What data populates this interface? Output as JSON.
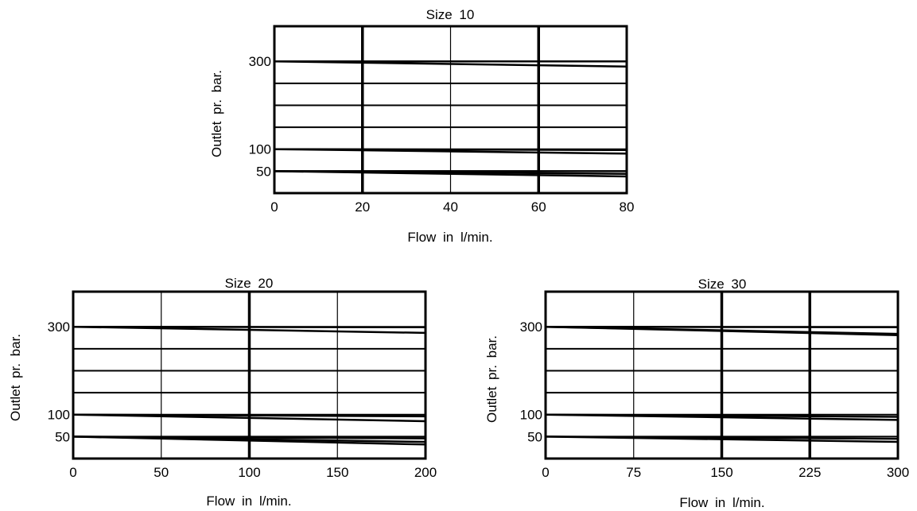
{
  "chart_data": [
    {
      "type": "line",
      "title": "Size 10",
      "xlabel": "Flow in l/min.",
      "ylabel": "Outlet pr. bar.",
      "xlim": [
        0,
        80
      ],
      "ylim": [
        0,
        380
      ],
      "x_ticks": [
        "0",
        "20",
        "40",
        "60",
        "80"
      ],
      "y_ticks": [
        "300",
        "100",
        "50"
      ],
      "y_tick_values": [
        300,
        100,
        50
      ],
      "grid": true,
      "thick_vertical_gridlines": [
        20,
        60
      ],
      "thin_vertical_gridlines": [
        40
      ],
      "horizontal_gridlines": [
        50,
        100,
        150,
        200,
        250,
        300
      ],
      "series": [
        {
          "x": [
            0,
            80
          ],
          "y": [
            300,
            300
          ]
        },
        {
          "x": [
            0,
            80
          ],
          "y": [
            300,
            288
          ]
        },
        {
          "x": [
            0,
            80
          ],
          "y": [
            100,
            98
          ]
        },
        {
          "x": [
            0,
            80
          ],
          "y": [
            100,
            90
          ]
        },
        {
          "x": [
            0,
            80
          ],
          "y": [
            50,
            50
          ]
        },
        {
          "x": [
            0,
            80
          ],
          "y": [
            50,
            44
          ]
        },
        {
          "x": [
            0,
            80
          ],
          "y": [
            50,
            38
          ]
        }
      ]
    },
    {
      "type": "line",
      "title": "Size 20",
      "xlabel": "Flow in l/min.",
      "ylabel": "Outlet pr. bar.",
      "xlim": [
        0,
        200
      ],
      "ylim": [
        0,
        380
      ],
      "x_ticks": [
        "0",
        "50",
        "100",
        "150",
        "200"
      ],
      "y_ticks": [
        "300",
        "100",
        "50"
      ],
      "y_tick_values": [
        300,
        100,
        50
      ],
      "grid": true,
      "thick_vertical_gridlines": [
        100
      ],
      "thin_vertical_gridlines": [
        50,
        150
      ],
      "horizontal_gridlines": [
        50,
        100,
        150,
        200,
        250,
        300
      ],
      "series": [
        {
          "x": [
            0,
            200
          ],
          "y": [
            300,
            299
          ]
        },
        {
          "x": [
            0,
            200
          ],
          "y": [
            300,
            286
          ]
        },
        {
          "x": [
            0,
            200
          ],
          "y": [
            100,
            96
          ]
        },
        {
          "x": [
            0,
            200
          ],
          "y": [
            100,
            85
          ]
        },
        {
          "x": [
            0,
            200
          ],
          "y": [
            50,
            46
          ]
        },
        {
          "x": [
            0,
            200
          ],
          "y": [
            50,
            38
          ]
        },
        {
          "x": [
            0,
            200
          ],
          "y": [
            50,
            32
          ]
        }
      ]
    },
    {
      "type": "line",
      "title": "Size 30",
      "xlabel": "Flow in l/min.",
      "ylabel": "Outlet pr. bar.",
      "xlim": [
        0,
        300
      ],
      "ylim": [
        0,
        380
      ],
      "x_ticks": [
        "0",
        "75",
        "150",
        "225",
        "300"
      ],
      "y_ticks": [
        "300",
        "100",
        "50"
      ],
      "y_tick_values": [
        300,
        100,
        50
      ],
      "grid": true,
      "thick_vertical_gridlines": [
        150,
        225
      ],
      "thin_vertical_gridlines": [
        75
      ],
      "horizontal_gridlines": [
        50,
        100,
        150,
        200,
        250,
        300
      ],
      "series": [
        {
          "x": [
            0,
            300
          ],
          "y": [
            300,
            299
          ]
        },
        {
          "x": [
            0,
            300
          ],
          "y": [
            300,
            284
          ]
        },
        {
          "x": [
            0,
            300
          ],
          "y": [
            300,
            281
          ]
        },
        {
          "x": [
            0,
            300
          ],
          "y": [
            100,
            95
          ]
        },
        {
          "x": [
            0,
            300
          ],
          "y": [
            100,
            88
          ]
        },
        {
          "x": [
            0,
            300
          ],
          "y": [
            50,
            45
          ]
        },
        {
          "x": [
            0,
            300
          ],
          "y": [
            50,
            38
          ]
        }
      ]
    }
  ]
}
